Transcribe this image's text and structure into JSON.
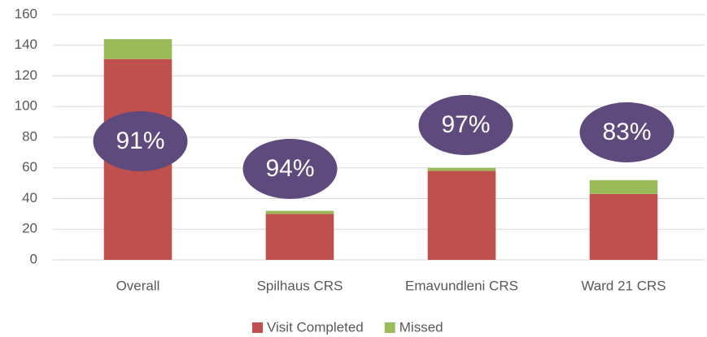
{
  "chart_data": {
    "type": "stacked_bar",
    "categories": [
      "Overall",
      "Spilhaus CRS",
      "Emavundleni CRS",
      "Ward 21 CRS"
    ],
    "series": [
      {
        "name": "Visit Completed",
        "color": "#c0504d",
        "values": [
          131,
          30,
          58,
          43
        ]
      },
      {
        "name": "Missed",
        "color": "#9bbb59",
        "values": [
          13,
          2,
          2,
          9
        ]
      }
    ],
    "annotations": [
      "91%",
      "94%",
      "97%",
      "83%"
    ],
    "annotation_color": "#5e4a7c",
    "ylim": [
      0,
      160
    ],
    "yticks": [
      0,
      20,
      40,
      60,
      80,
      100,
      120,
      140,
      160
    ],
    "grid": true,
    "legend": "bottom"
  }
}
